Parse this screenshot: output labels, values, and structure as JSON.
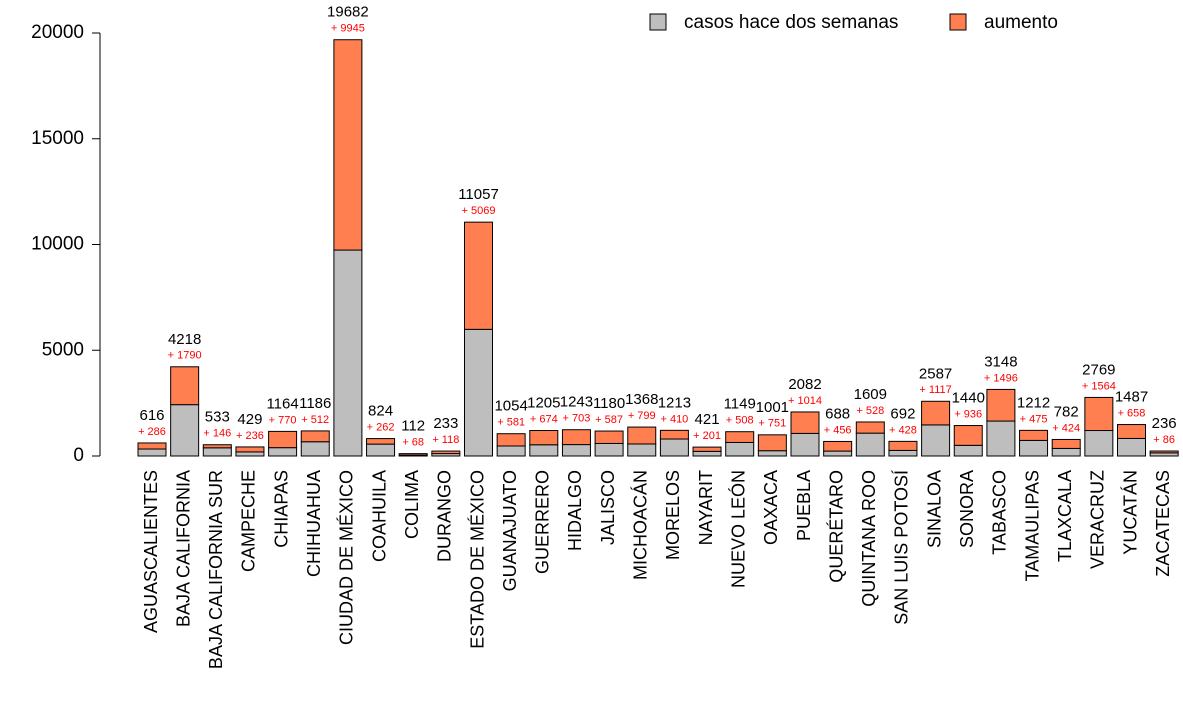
{
  "chart_data": {
    "type": "stacked_bar",
    "categories": [
      "AGUASCALIENTES",
      "BAJA CALIFORNIA",
      "BAJA CALIFORNIA SUR",
      "CAMPECHE",
      "CHIAPAS",
      "CHIHUAHUA",
      "CIUDAD DE MÉXICO",
      "COAHUILA",
      "COLIMA",
      "DURANGO",
      "ESTADO DE MÉXICO",
      "GUANAJUATO",
      "GUERRERO",
      "HIDALGO",
      "JALISCO",
      "MICHOACÁN",
      "MORELOS",
      "NAYARIT",
      "NUEVO LEÓN",
      "OAXACA",
      "PUEBLA",
      "QUERÉTARO",
      "QUINTANA ROO",
      "SAN LUIS POTOSÍ",
      "SINALOA",
      "SONORA",
      "TABASCO",
      "TAMAULIPAS",
      "TLAXCALA",
      "VERACRUZ",
      "YUCATÁN",
      "ZACATECAS"
    ],
    "series": [
      {
        "name": "casos hace dos semanas",
        "color": "#bebebe",
        "values": [
          330,
          2428,
          387,
          193,
          394,
          674,
          9737,
          562,
          44,
          115,
          5988,
          473,
          531,
          540,
          593,
          569,
          803,
          220,
          641,
          250,
          1068,
          232,
          1081,
          264,
          1470,
          504,
          1652,
          737,
          358,
          1205,
          829,
          150
        ]
      },
      {
        "name": "aumento",
        "color": "#ff7f50",
        "values": [
          286,
          1790,
          146,
          236,
          770,
          512,
          9945,
          262,
          68,
          118,
          5069,
          581,
          674,
          703,
          587,
          799,
          410,
          201,
          508,
          751,
          1014,
          456,
          528,
          428,
          1117,
          936,
          1496,
          475,
          424,
          1564,
          658,
          86
        ],
        "value_labels": [
          "+ 286",
          "+ 1790",
          "+ 146",
          "+ 236",
          "+ 770",
          "+ 512",
          "+ 9945",
          "+ 262",
          "+ 68",
          "+ 118",
          "+ 5069",
          "+ 581",
          "+ 674",
          "+ 703",
          "+ 587",
          "+ 799",
          "+ 410",
          "+ 201",
          "+ 508",
          "+ 751",
          "+ 1014",
          "+ 456",
          "+ 528",
          "+ 428",
          "+ 1117",
          "+ 936",
          "+ 1496",
          "+ 475",
          "+ 424",
          "+ 1564",
          "+ 658",
          "+ 86"
        ]
      }
    ],
    "totals": [
      616,
      4218,
      533,
      429,
      1164,
      1186,
      19682,
      824,
      112,
      233,
      11057,
      1054,
      1205,
      1243,
      1180,
      1368,
      1213,
      421,
      1149,
      1001,
      2082,
      688,
      1609,
      692,
      2587,
      1440,
      3148,
      1212,
      782,
      2769,
      1487,
      236
    ],
    "ylim": [
      0,
      20000
    ],
    "yticks": [
      0,
      5000,
      10000,
      15000,
      20000
    ],
    "legend": "top-right"
  }
}
